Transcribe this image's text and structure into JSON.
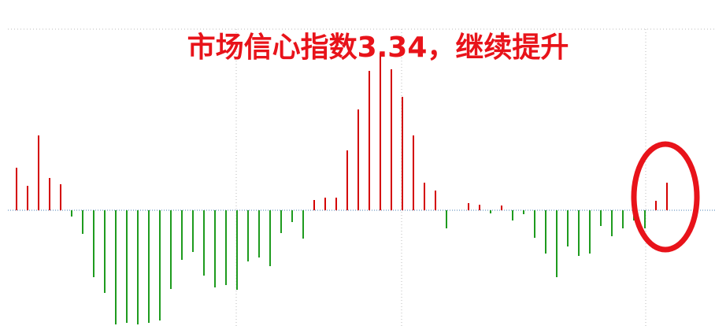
{
  "chart_data": {
    "type": "bar",
    "title": "市场信心指数3.34，继续提升",
    "values": [
      54,
      31,
      95,
      41,
      33,
      -8,
      -30,
      -85,
      -105,
      -145,
      -143,
      -145,
      -143,
      -140,
      -100,
      -63,
      -53,
      -83,
      -98,
      -95,
      -101,
      -65,
      -60,
      -71,
      -29,
      -15,
      -36,
      13,
      16,
      16,
      76,
      128,
      177,
      200,
      179,
      144,
      95,
      35,
      25,
      -23,
      0,
      9,
      7,
      -4,
      6,
      -13,
      -5,
      -35,
      -55,
      -85,
      -46,
      -58,
      -55,
      -20,
      -33,
      -23,
      -13,
      -23,
      12,
      35
    ],
    "color": "#d40000",
    "negative_color": "#1e9b1e",
    "ylim": [
      -150,
      230
    ]
  }
}
